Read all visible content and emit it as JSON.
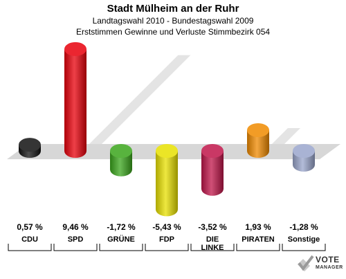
{
  "header": {
    "title": "Stadt Mülheim an der Ruhr",
    "subtitle1": "Landtagswahl 2010 - Bundestagswahl 2009",
    "subtitle2": "Erststimmen Gewinne und Verluste Stimmbezirk 054"
  },
  "chart_data": {
    "type": "bar",
    "categories": [
      "CDU",
      "SPD",
      "GRÜNE",
      "FDP",
      "DIE LINKE",
      "PIRATEN",
      "Sonstige"
    ],
    "category_lines": [
      [
        "CDU"
      ],
      [
        "SPD"
      ],
      [
        "GRÜNE"
      ],
      [
        "FDP"
      ],
      [
        "DIE",
        "LINKE"
      ],
      [
        "PIRATEN"
      ],
      [
        "Sonstige"
      ]
    ],
    "values": [
      0.57,
      9.46,
      -1.72,
      -5.43,
      -3.52,
      1.93,
      -1.28
    ],
    "value_labels": [
      "0,57 %",
      "9,46 %",
      "-1,72 %",
      "-5,43 %",
      "-3,52 %",
      "1,93 %",
      "-1,28 %"
    ],
    "colors": [
      "#111111",
      "#e8000b",
      "#3aa61c",
      "#e8e000",
      "#c0154a",
      "#f08a00",
      "#9aa6cc"
    ],
    "ylim": [
      -6,
      10
    ],
    "grid": false,
    "legend": "none"
  },
  "logo": {
    "line1": "VOTE",
    "line2": "MANAGER",
    "icon": "checkmark-ballot-icon"
  }
}
